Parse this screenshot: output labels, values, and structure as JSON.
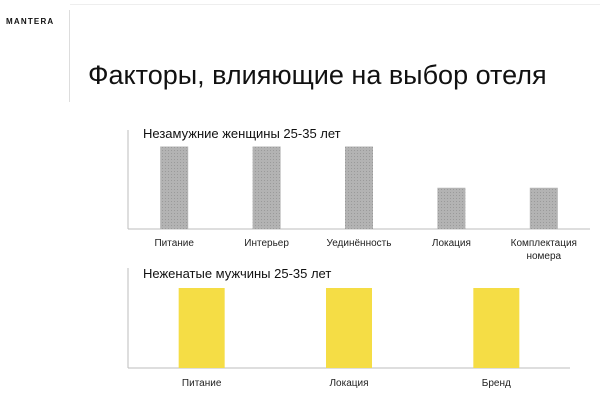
{
  "header": {
    "logo": "MANTERA",
    "title": "Факторы, влияющие на выбор отеля"
  },
  "colors": {
    "chart1_bar": "#b3b3b3",
    "chart2_bar": "#f5dd45",
    "axis": "#bdbdbd"
  },
  "chart_data": [
    {
      "type": "bar",
      "title": "Незамужние женщины 25-35 лет",
      "categories": [
        "Питание",
        "Интерьер",
        "Уединённость",
        "Локация",
        "Комплектация номера"
      ],
      "values": [
        2,
        2,
        2,
        1,
        1
      ],
      "ylim": [
        0,
        2.4
      ],
      "grid": false
    },
    {
      "type": "bar",
      "title": "Неженатые мужчины 25-35 лет",
      "categories": [
        "Питание",
        "Локация",
        "Бренд"
      ],
      "values": [
        1,
        1,
        1
      ],
      "ylim": [
        0,
        1.25
      ],
      "grid": false
    }
  ]
}
